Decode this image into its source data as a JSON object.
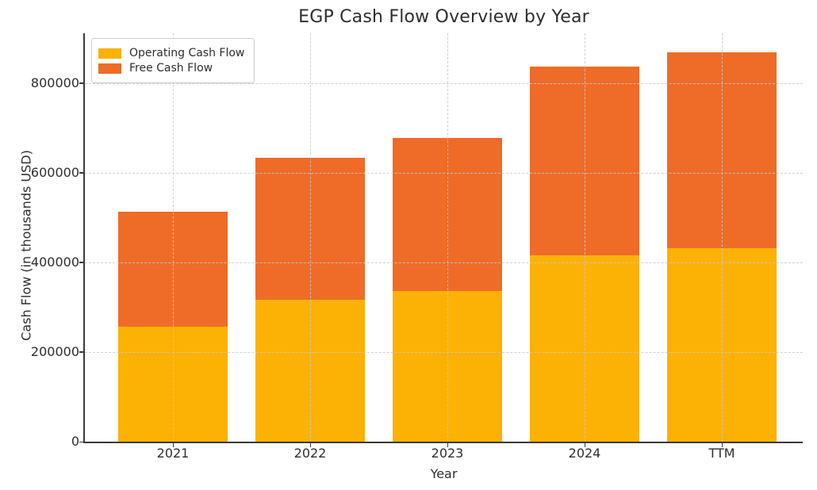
{
  "chart": {
    "title": "EGP Cash Flow Overview by Year",
    "xlabel": "Year",
    "ylabel": "Cash Flow (in thousands USD)"
  },
  "chart_data": {
    "type": "bar",
    "stacked": true,
    "title": "EGP Cash Flow Overview by Year",
    "xlabel": "Year",
    "ylabel": "Cash Flow (in thousands USD)",
    "categories": [
      "2021",
      "2022",
      "2023",
      "2024",
      "TTM"
    ],
    "series": [
      {
        "name": "Operating Cash Flow",
        "color": "#FCB105",
        "values": [
          256000,
          316000,
          336000,
          416000,
          432000
        ]
      },
      {
        "name": "Free Cash Flow",
        "color": "#EE6C28",
        "values": [
          257000,
          317000,
          342000,
          421000,
          437000
        ]
      }
    ],
    "stack_totals": [
      513000,
      633000,
      678000,
      837000,
      869000
    ],
    "y_ticks": [
      0,
      200000,
      400000,
      600000,
      800000
    ],
    "ylim": [
      0,
      911500
    ],
    "grid": true,
    "grid_style": "dashed",
    "grid_over_bars": true,
    "legend_position": "upper left",
    "spines": [
      "left",
      "bottom"
    ],
    "background_color": "#ffffff",
    "spine_color": "#3a3a3a",
    "grid_color": "#c9c9c9"
  }
}
